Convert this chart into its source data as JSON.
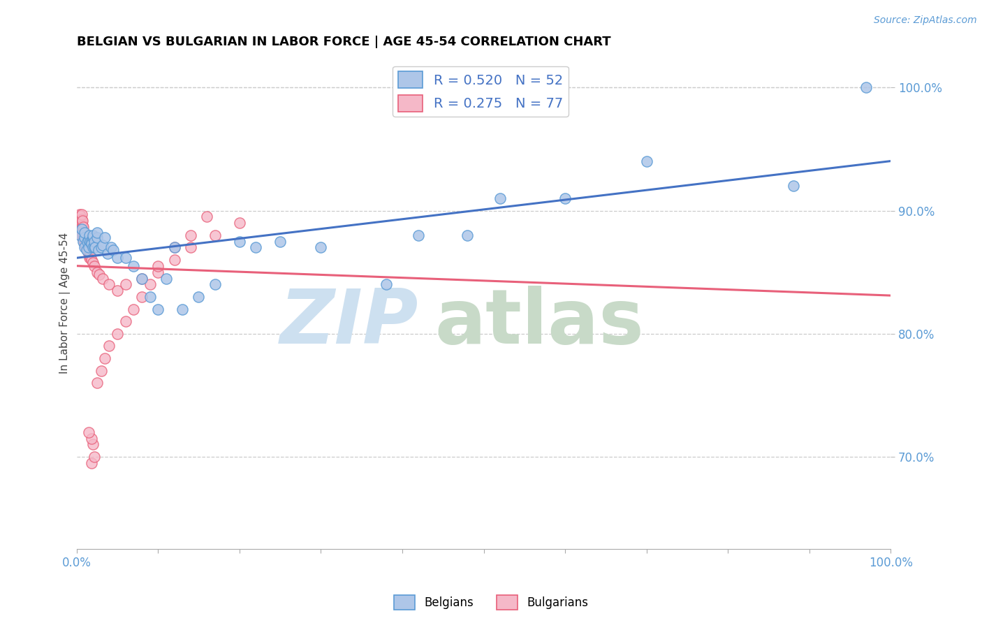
{
  "title": "BELGIAN VS BULGARIAN IN LABOR FORCE | AGE 45-54 CORRELATION CHART",
  "source": "Source: ZipAtlas.com",
  "ylabel": "In Labor Force | Age 45-54",
  "xlim": [
    0.0,
    1.0
  ],
  "ylim": [
    0.625,
    1.025
  ],
  "y_ticks": [
    0.7,
    0.8,
    0.9,
    1.0
  ],
  "y_tick_labels": [
    "70.0%",
    "80.0%",
    "90.0%",
    "100.0%"
  ],
  "x_tick_labels_major": [
    "0.0%",
    "",
    "",
    "",
    "",
    "",
    "",
    "",
    "",
    "",
    "100.0%"
  ],
  "x_ticks_major": [
    0.0,
    0.1,
    0.2,
    0.3,
    0.4,
    0.5,
    0.6,
    0.7,
    0.8,
    0.9,
    1.0
  ],
  "belgian_R": 0.52,
  "belgian_N": 52,
  "bulgarian_R": 0.275,
  "bulgarian_N": 77,
  "belgian_color": "#aec6e8",
  "bulgarian_color": "#f5b8c8",
  "belgian_edge_color": "#5b9bd5",
  "bulgarian_edge_color": "#e8607a",
  "belgian_line_color": "#4472c4",
  "bulgarian_line_color": "#e8607a",
  "watermark_zip_color": "#cde0f0",
  "watermark_atlas_color": "#c8dac8",
  "belgian_x": [
    0.005,
    0.006,
    0.008,
    0.01,
    0.01,
    0.01,
    0.012,
    0.013,
    0.015,
    0.015,
    0.016,
    0.017,
    0.018,
    0.018,
    0.02,
    0.02,
    0.02,
    0.022,
    0.022,
    0.023,
    0.025,
    0.025,
    0.027,
    0.03,
    0.032,
    0.035,
    0.038,
    0.042,
    0.045,
    0.05,
    0.06,
    0.07,
    0.08,
    0.09,
    0.1,
    0.11,
    0.12,
    0.13,
    0.15,
    0.17,
    0.2,
    0.22,
    0.25,
    0.3,
    0.38,
    0.42,
    0.48,
    0.52,
    0.6,
    0.7,
    0.88,
    0.97
  ],
  "belgian_y": [
    0.88,
    0.885,
    0.875,
    0.87,
    0.878,
    0.882,
    0.868,
    0.875,
    0.87,
    0.876,
    0.88,
    0.875,
    0.875,
    0.873,
    0.87,
    0.878,
    0.88,
    0.87,
    0.875,
    0.87,
    0.878,
    0.882,
    0.868,
    0.87,
    0.872,
    0.878,
    0.865,
    0.87,
    0.868,
    0.862,
    0.862,
    0.855,
    0.845,
    0.83,
    0.82,
    0.845,
    0.87,
    0.82,
    0.83,
    0.84,
    0.875,
    0.87,
    0.875,
    0.87,
    0.84,
    0.88,
    0.88,
    0.91,
    0.91,
    0.94,
    0.92,
    1.0
  ],
  "bulgarian_x": [
    0.004,
    0.004,
    0.004,
    0.004,
    0.005,
    0.005,
    0.005,
    0.005,
    0.005,
    0.006,
    0.006,
    0.006,
    0.006,
    0.006,
    0.006,
    0.007,
    0.007,
    0.007,
    0.007,
    0.007,
    0.008,
    0.008,
    0.008,
    0.008,
    0.009,
    0.009,
    0.01,
    0.01,
    0.01,
    0.011,
    0.011,
    0.011,
    0.012,
    0.012,
    0.013,
    0.013,
    0.013,
    0.014,
    0.014,
    0.015,
    0.015,
    0.016,
    0.016,
    0.017,
    0.018,
    0.02,
    0.022,
    0.025,
    0.028,
    0.032,
    0.04,
    0.05,
    0.06,
    0.08,
    0.1,
    0.12,
    0.14,
    0.17,
    0.2,
    0.025,
    0.03,
    0.035,
    0.04,
    0.05,
    0.06,
    0.07,
    0.08,
    0.09,
    0.1,
    0.12,
    0.14,
    0.16,
    0.018,
    0.022,
    0.02,
    0.018,
    0.015
  ],
  "bulgarian_y": [
    0.885,
    0.89,
    0.893,
    0.897,
    0.882,
    0.885,
    0.888,
    0.892,
    0.896,
    0.88,
    0.883,
    0.886,
    0.89,
    0.893,
    0.897,
    0.878,
    0.882,
    0.885,
    0.888,
    0.892,
    0.877,
    0.88,
    0.883,
    0.887,
    0.875,
    0.878,
    0.873,
    0.877,
    0.88,
    0.872,
    0.875,
    0.878,
    0.87,
    0.873,
    0.868,
    0.872,
    0.875,
    0.867,
    0.87,
    0.865,
    0.868,
    0.862,
    0.866,
    0.863,
    0.86,
    0.858,
    0.855,
    0.85,
    0.848,
    0.845,
    0.84,
    0.835,
    0.84,
    0.845,
    0.85,
    0.86,
    0.87,
    0.88,
    0.89,
    0.76,
    0.77,
    0.78,
    0.79,
    0.8,
    0.81,
    0.82,
    0.83,
    0.84,
    0.855,
    0.87,
    0.88,
    0.895,
    0.695,
    0.7,
    0.71,
    0.715,
    0.72
  ]
}
